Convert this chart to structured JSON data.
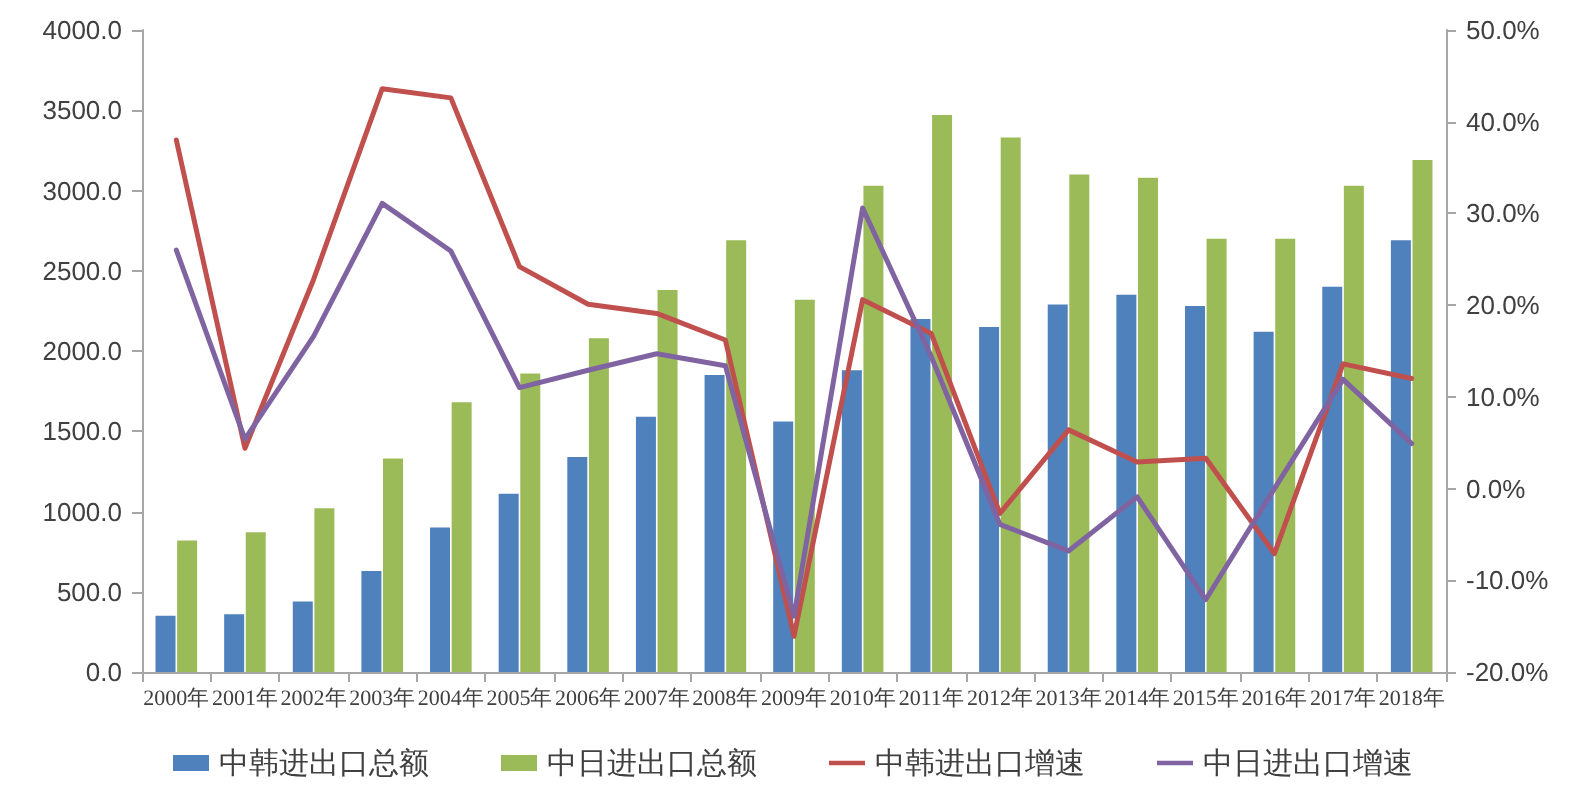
{
  "chart_data": {
    "type": "bar",
    "categories": [
      "2000年",
      "2001年",
      "2002年",
      "2003年",
      "2004年",
      "2005年",
      "2006年",
      "2007年",
      "2008年",
      "2009年",
      "2010年",
      "2011年",
      "2012年",
      "2013年",
      "2014年",
      "2015年",
      "2016年",
      "2017年",
      "2018年"
    ],
    "series": [
      {
        "name": "中韩进出口总额",
        "color": "#4f81bd",
        "values": [
          350,
          360,
          440,
          630,
          900,
          1110,
          1340,
          1590,
          1850,
          1560,
          1880,
          2200,
          2150,
          2290,
          2350,
          2280,
          2120,
          2400,
          2690
        ]
      },
      {
        "name": "中日进出口总额",
        "color": "#9bbb59",
        "values": [
          820,
          870,
          1020,
          1330,
          1680,
          1860,
          2080,
          2380,
          2690,
          2320,
          3030,
          3470,
          3330,
          3100,
          3080,
          2700,
          2700,
          3030,
          3190
        ]
      },
      {
        "name": "中韩进出口增速",
        "type": "line",
        "axis": "y2",
        "color": "#c0504d",
        "values": [
          38.0,
          4.4,
          22.8,
          43.6,
          42.6,
          24.2,
          20.1,
          19.1,
          16.2,
          -16.1,
          20.6,
          16.9,
          -2.7,
          6.4,
          2.9,
          3.3,
          -7.1,
          13.6,
          12.0
        ]
      },
      {
        "name": "中日进出口增速",
        "type": "line",
        "axis": "y2",
        "color": "#8064a2",
        "values": [
          26.0,
          5.4,
          16.6,
          31.1,
          25.9,
          11.0,
          12.9,
          14.7,
          13.4,
          -13.9,
          30.6,
          14.4,
          -3.9,
          -6.8,
          -0.9,
          -12.1,
          0.0,
          11.9,
          4.9
        ]
      }
    ],
    "ylim": [
      0,
      4000
    ],
    "yticks": [
      {
        "value": 0,
        "label": "0.0"
      },
      {
        "value": 500,
        "label": "500.0"
      },
      {
        "value": 1000,
        "label": "1000.0"
      },
      {
        "value": 1500,
        "label": "1500.0"
      },
      {
        "value": 2000,
        "label": "2000.0"
      },
      {
        "value": 2500,
        "label": "2500.0"
      },
      {
        "value": 3000,
        "label": "3000.0"
      },
      {
        "value": 3500,
        "label": "3500.0"
      },
      {
        "value": 4000,
        "label": "4000.0"
      }
    ],
    "y2lim": [
      -20,
      50
    ],
    "y2ticks": [
      {
        "value": -20,
        "label": "-20.0%"
      },
      {
        "value": -10,
        "label": "-10.0%"
      },
      {
        "value": 0,
        "label": "0.0%"
      },
      {
        "value": 10,
        "label": "10.0%"
      },
      {
        "value": 20,
        "label": "20.0%"
      },
      {
        "value": 30,
        "label": "30.0%"
      },
      {
        "value": 40,
        "label": "40.0%"
      },
      {
        "value": 50,
        "label": "50.0%"
      }
    ],
    "grid": false,
    "legend": "bottom",
    "marker": "none",
    "line_style": "solid"
  }
}
